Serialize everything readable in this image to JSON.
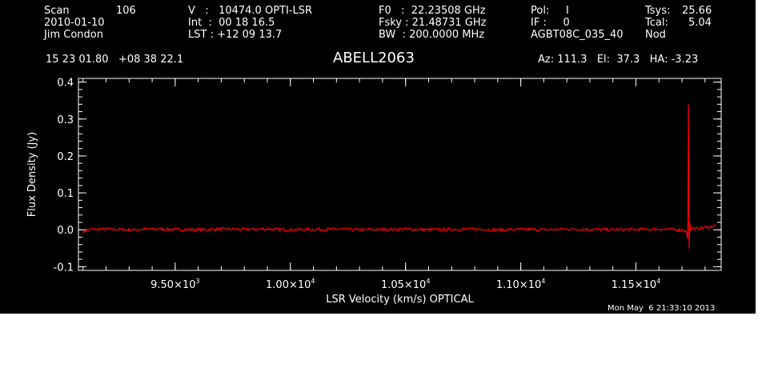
{
  "header": {
    "col1": [
      {
        "label": "Scan",
        "value": "106"
      },
      {
        "text": "2010-01-10"
      },
      {
        "text": "Jim Condon"
      }
    ],
    "col2": [
      "V   :   10474.0 OPTI-LSR",
      "Int  :  00 18 16.5",
      "LST : +12 09 13.7"
    ],
    "col3": [
      "F0   :  22.23508 GHz",
      "Fsky : 21.48731 GHz",
      "BW  : 200.0000 MHz"
    ],
    "col4": [
      "Pol:     I",
      "IF :     0",
      "AGBT08C_035_40"
    ],
    "col5": [
      {
        "label": "Tsys:",
        "value": "25.66"
      },
      {
        "label": "Tcal:",
        "value": "5.04"
      },
      {
        "label": "Nod",
        "value": ""
      }
    ],
    "coords": "15 23 01.80   +08 38 22.1",
    "source": "ABELL2063",
    "azelha": "Az: 111.3   El:  37.3   HA: -3.23",
    "timestamp": "Mon May  6 21:33:10 2013"
  },
  "chart_data": {
    "type": "line",
    "xlabel": "LSR Velocity (km/s) OPTICAL",
    "ylabel": "Flux Density (Jy)",
    "xlim": [
      9080,
      11870
    ],
    "ylim": [
      -0.11,
      0.41
    ],
    "xticks": [
      {
        "value": 9500,
        "mant": "9.50",
        "exp": "3"
      },
      {
        "value": 10000,
        "mant": "1.00",
        "exp": "4"
      },
      {
        "value": 10500,
        "mant": "1.05",
        "exp": "4"
      },
      {
        "value": 11000,
        "mant": "1.10",
        "exp": "4"
      },
      {
        "value": 11500,
        "mant": "1.15",
        "exp": "4"
      }
    ],
    "yticks": [
      "-0.1",
      "0.0",
      "0.1",
      "0.2",
      "0.3",
      "0.4"
    ],
    "line_color": "#ff0000",
    "series": [
      {
        "x": [
          9100,
          9130,
          9200,
          9300,
          9400,
          9500,
          9600,
          9700,
          9800,
          9900,
          10000,
          10100,
          10200,
          10300,
          10400,
          10500,
          10600,
          10700,
          10800,
          10900,
          11000,
          11100,
          11200,
          11300,
          11400,
          11500,
          11600,
          11700,
          11720,
          11725,
          11728,
          11731,
          11734,
          11737,
          11740,
          11760,
          11800,
          11850
        ],
        "y": [
          -0.006,
          0.001,
          0.002,
          0.0,
          0.002,
          0.001,
          0.0,
          0.002,
          0.001,
          0.002,
          0.0,
          0.001,
          0.002,
          0.0,
          0.001,
          0.002,
          0.0,
          0.001,
          0.002,
          0.0,
          0.001,
          0.0,
          0.002,
          0.001,
          0.0,
          0.001,
          0.002,
          0.0,
          -0.005,
          -0.025,
          0.34,
          -0.05,
          0.02,
          -0.002,
          0.004,
          0.003,
          0.006,
          0.012
        ]
      }
    ]
  }
}
